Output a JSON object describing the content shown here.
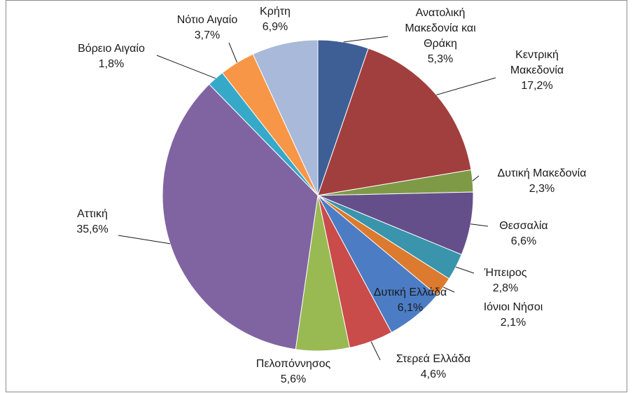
{
  "chart_data": {
    "type": "pie",
    "title": "",
    "slices": [
      {
        "label": "Ανατολική Μακεδονία και Θράκη",
        "lines": [
          "Ανατολική",
          "Μακεδονία και",
          "Θράκη",
          "5,3%"
        ],
        "value": 5.3,
        "color": "#3e5f96"
      },
      {
        "label": "Κεντρική Μακεδονία",
        "lines": [
          "Κεντρική",
          "Μακεδονία",
          "17,2%"
        ],
        "value": 17.2,
        "color": "#a13f3e"
      },
      {
        "label": "Δυτική Μακεδονία",
        "lines": [
          "Δυτική Μακεδονία",
          "2,3%"
        ],
        "value": 2.3,
        "color": "#7f9a47"
      },
      {
        "label": "Θεσσαλία",
        "lines": [
          "Θεσσαλία",
          "6,6%"
        ],
        "value": 6.6,
        "color": "#654f8b"
      },
      {
        "label": "Ήπειρος",
        "lines": [
          "Ήπειρος",
          "2,8%"
        ],
        "value": 2.8,
        "color": "#3a94ac"
      },
      {
        "label": "Ιόνιοι Νήσοι",
        "lines": [
          "Ιόνιοι Νήσοι",
          "2,1%"
        ],
        "value": 2.1,
        "color": "#dc7a2f"
      },
      {
        "label": "Δυτική Ελλάδα",
        "lines": [
          "Δυτική Ελλάδα",
          "6,1%"
        ],
        "value": 6.1,
        "color": "#4c7cc4"
      },
      {
        "label": "Στερεά Ελλάδα",
        "lines": [
          "Στερεά Ελλάδα",
          "4,6%"
        ],
        "value": 4.6,
        "color": "#c94b4a"
      },
      {
        "label": "Πελοπόννησος",
        "lines": [
          "Πελοπόννησος",
          "5,6%"
        ],
        "value": 5.6,
        "color": "#99b953"
      },
      {
        "label": "Αττική",
        "lines": [
          "Αττική",
          "35,6%"
        ],
        "value": 35.6,
        "color": "#8064a2"
      },
      {
        "label": "Βόρειο Αιγαίο",
        "lines": [
          "Βόρειο Αιγαίο",
          "1,8%"
        ],
        "value": 1.8,
        "color": "#36a9c9"
      },
      {
        "label": "Νότιο Αιγαίο",
        "lines": [
          "Νότιο Αιγαίο",
          "3,7%"
        ],
        "value": 3.7,
        "color": "#f79646"
      },
      {
        "label": "Κρήτη",
        "lines": [
          "Κρήτη",
          "6,9%"
        ],
        "value": 6.9,
        "color": "#a9b9d9"
      }
    ]
  }
}
